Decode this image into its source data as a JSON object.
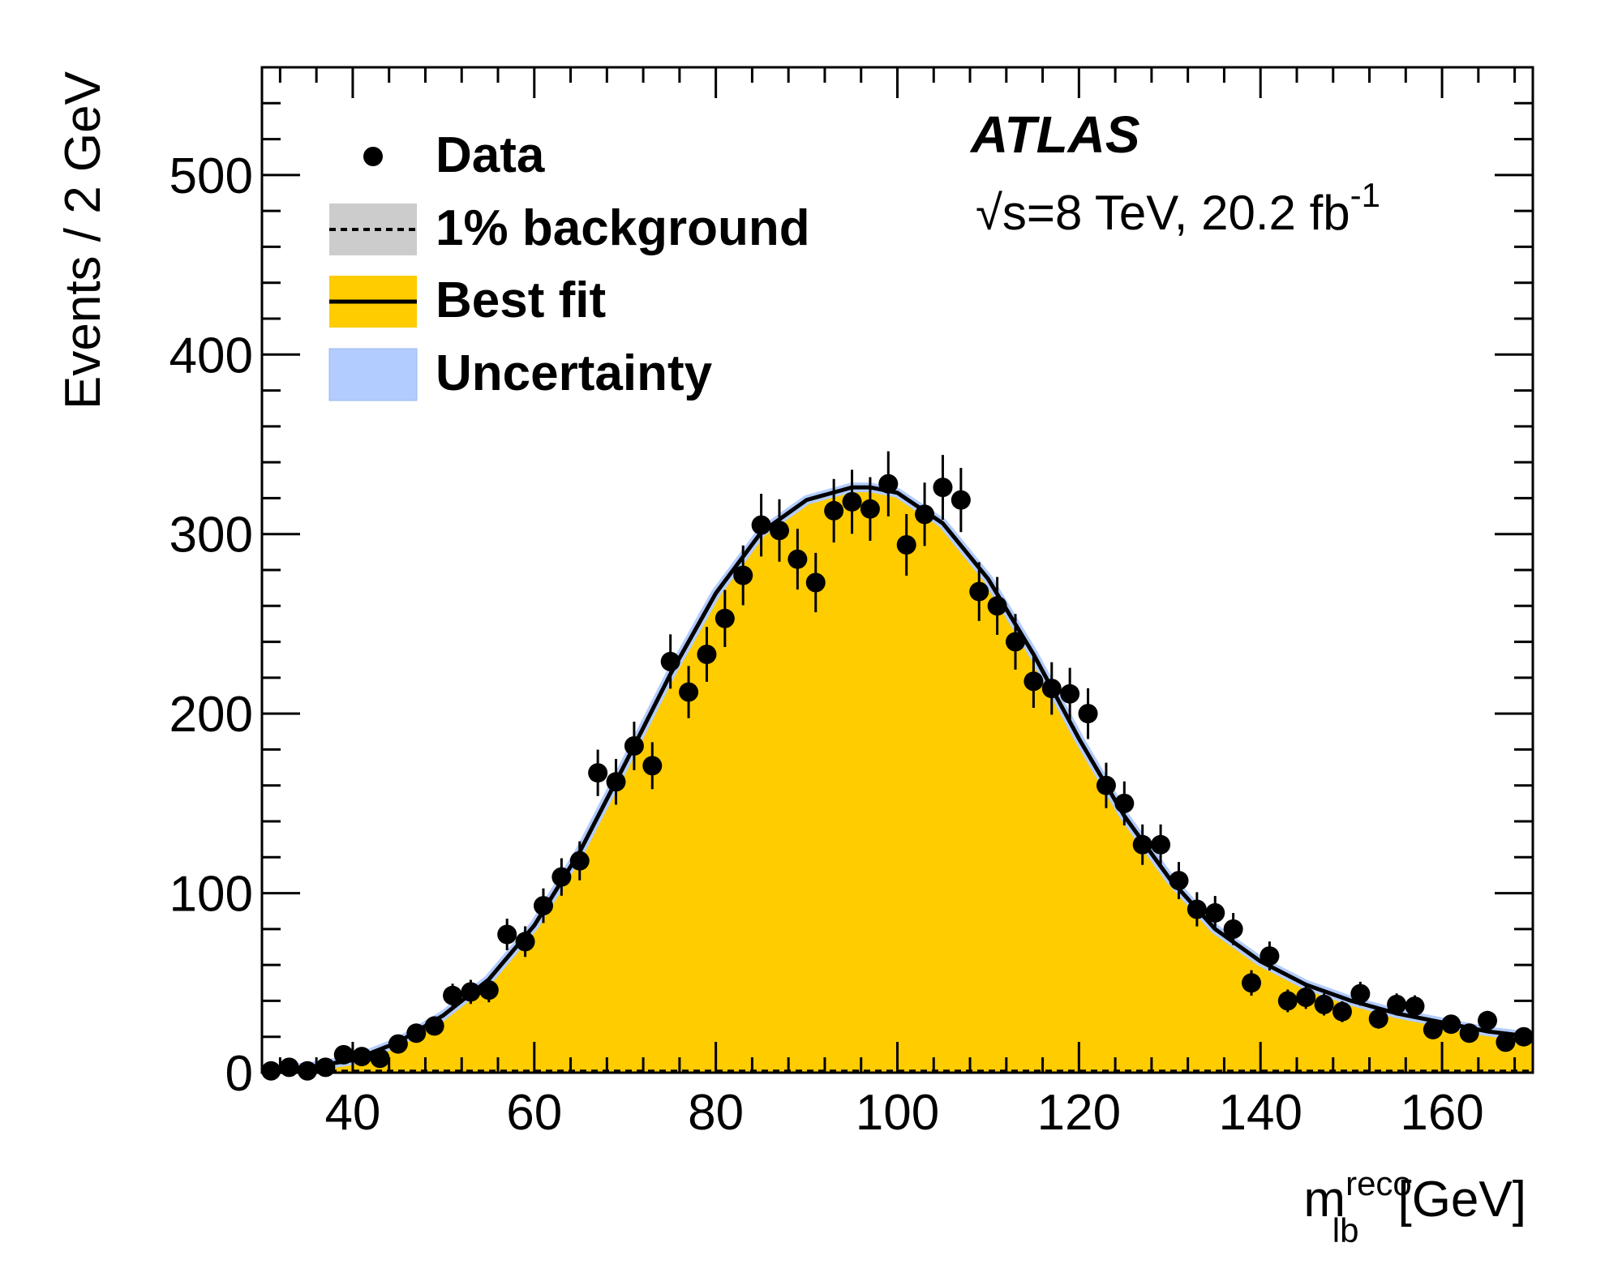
{
  "chart_data": {
    "type": "scatter",
    "experiment": "ATLAS",
    "energy_text": "√s=8 TeV, 20.2 fb",
    "energy_sup": "-1",
    "ylabel": "Events / 2 GeV",
    "xlabel_main": "m",
    "xlabel_sup": "reco",
    "xlabel_sub": "lb",
    "xlabel_unit": "[GeV]",
    "xlim": [
      30,
      170
    ],
    "ylim": [
      0,
      560
    ],
    "x_ticks": [
      40,
      60,
      80,
      100,
      120,
      140,
      160
    ],
    "y_ticks": [
      0,
      100,
      200,
      300,
      400,
      500
    ],
    "x_tick_labels": [
      "40",
      "60",
      "80",
      "100",
      "120",
      "140",
      "160"
    ],
    "y_tick_labels": [
      "0",
      "100",
      "200",
      "300",
      "400",
      "500"
    ],
    "grid": false,
    "legend_position": "top-left",
    "legend": {
      "data": "Data",
      "background": "1% background",
      "best_fit": "Best fit",
      "uncertainty": "Uncertainty"
    },
    "colors": {
      "fit_fill": "#ffcc00",
      "fit_line": "#000000",
      "uncertainty": "#b3ccff",
      "background_fill": "#cccccc",
      "data": "#000000"
    },
    "data_series": {
      "name": "Data",
      "x": [
        31,
        33,
        35,
        37,
        39,
        41,
        43,
        45,
        47,
        49,
        51,
        53,
        55,
        57,
        59,
        61,
        63,
        65,
        67,
        69,
        71,
        73,
        75,
        77,
        79,
        81,
        83,
        85,
        87,
        89,
        91,
        93,
        95,
        97,
        99,
        101,
        103,
        105,
        107,
        109,
        111,
        113,
        115,
        117,
        119,
        121,
        123,
        125,
        127,
        129,
        131,
        133,
        135,
        137,
        139,
        141,
        143,
        145,
        147,
        149,
        151,
        153,
        155,
        157,
        159,
        161,
        163,
        165,
        167,
        169
      ],
      "y": [
        1,
        3,
        1,
        3,
        10,
        9,
        8,
        16,
        22,
        26,
        43,
        45,
        46,
        77,
        73,
        93,
        109,
        118,
        167,
        162,
        182,
        171,
        229,
        212,
        233,
        253,
        277,
        305,
        302,
        286,
        273,
        313,
        318,
        314,
        328,
        294,
        311,
        326,
        319,
        268,
        260,
        240,
        218,
        214,
        211,
        200,
        160,
        150,
        127,
        127,
        107,
        91,
        89,
        80,
        50,
        65,
        40,
        42,
        38,
        34,
        44,
        30,
        38,
        37,
        24,
        27,
        22,
        29,
        17,
        20
      ]
    },
    "best_fit": {
      "name": "Best fit",
      "x": [
        30,
        35,
        40,
        45,
        50,
        55,
        60,
        65,
        70,
        75,
        80,
        85,
        90,
        95,
        97,
        100,
        105,
        110,
        115,
        120,
        125,
        130,
        135,
        140,
        145,
        150,
        155,
        160,
        165,
        170
      ],
      "y": [
        1,
        3,
        7,
        17,
        32,
        52,
        82,
        123,
        172,
        222,
        267,
        301,
        319,
        326,
        326,
        323,
        306,
        275,
        233,
        186,
        143,
        108,
        80,
        62,
        49,
        40,
        33,
        28,
        23,
        20
      ]
    },
    "background_level": 1
  }
}
